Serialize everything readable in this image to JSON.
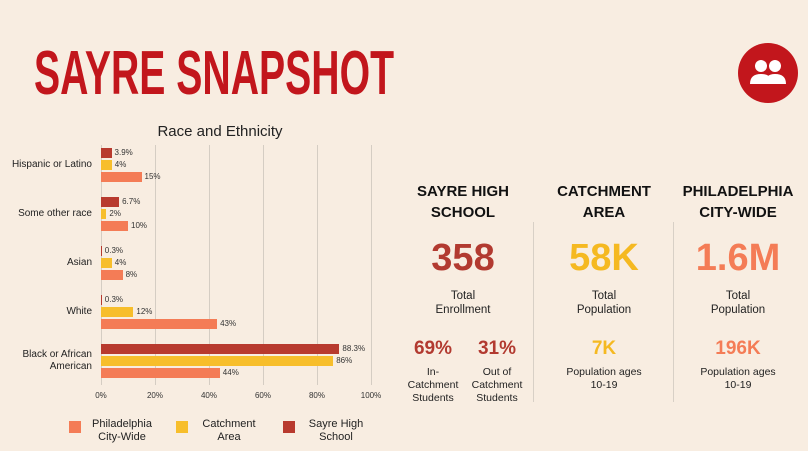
{
  "header": {
    "title": "SAYRE SNAPSHOT"
  },
  "chart_data": {
    "type": "hbar",
    "title": "Race and Ethnicity",
    "categories": [
      "Hispanic or Latino",
      "Some other race",
      "Asian",
      "White",
      "Black or African American"
    ],
    "series": [
      {
        "name": "Sayre High School",
        "color": "#b83a2e",
        "values": [
          3.9,
          6.7,
          0.3,
          0.3,
          88.3
        ],
        "value_labels": [
          "3.9%",
          "6.7%",
          "0.3%",
          "0.3%",
          "88.3%"
        ]
      },
      {
        "name": "Catchment Area",
        "color": "#f7be2b",
        "values": [
          4,
          2,
          4,
          12,
          86
        ],
        "value_labels": [
          "4%",
          "2%",
          "4%",
          "12%",
          "86%"
        ]
      },
      {
        "name": "Philadelphia City-Wide",
        "color": "#f47c56",
        "values": [
          15,
          10,
          8,
          43,
          44
        ],
        "value_labels": [
          "15%",
          "10%",
          "8%",
          "43%",
          "44%"
        ]
      }
    ],
    "xlim": [
      0,
      100
    ],
    "xticks": [
      {
        "value": 0,
        "label": "0%"
      },
      {
        "value": 20,
        "label": "20%"
      },
      {
        "value": 40,
        "label": "40%"
      },
      {
        "value": 60,
        "label": "60%"
      },
      {
        "value": 80,
        "label": "80%"
      },
      {
        "value": 100,
        "label": "100%"
      }
    ],
    "grid": true
  },
  "stats": [
    {
      "heading": "SAYRE HIGH SCHOOL",
      "value": "358",
      "label": "Total Enrollment",
      "sub": [
        {
          "value": "69%",
          "label": "In-Catchment Students"
        },
        {
          "value": "31%",
          "label": "Out of Catchment Students"
        }
      ]
    },
    {
      "heading": "CATCHMENT AREA",
      "value": "58K",
      "label": "Total Population",
      "sub": [
        {
          "value": "7K",
          "label": "Population ages 10-19"
        }
      ]
    },
    {
      "heading": "PHILADELPHIA CITY-WIDE",
      "value": "1.6M",
      "label": "Total Population",
      "sub": [
        {
          "value": "196K",
          "label": "Population ages 10-19"
        }
      ]
    }
  ]
}
